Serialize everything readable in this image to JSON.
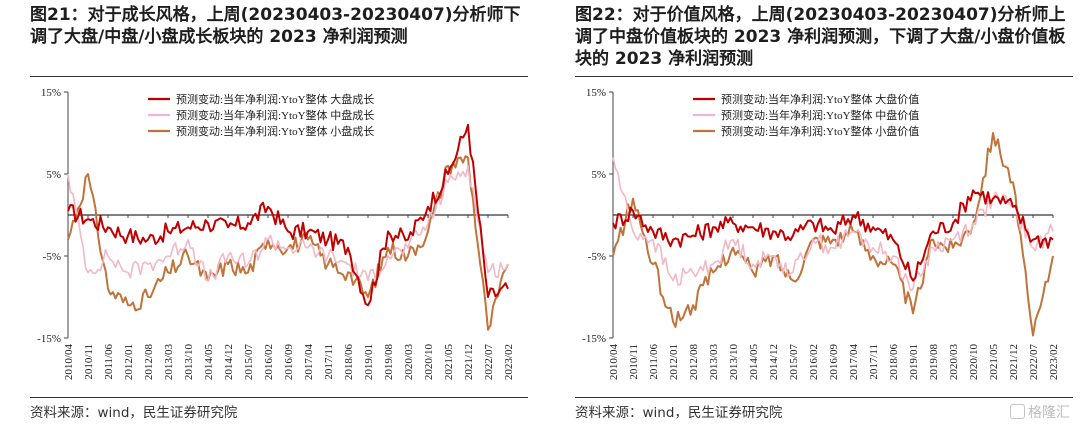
{
  "panels": [
    {
      "title": "图21：对于成长风格，上周(20230403-20230407)分析师下调了大盘/中盘/小盘成长板块的 2023 净利润预测",
      "source": "资料来源：wind，民生证券研究院"
    },
    {
      "title": "图22：对于价值风格，上周(20230403-20230407)分析师上调了中盘价值板块的 2023 净利润预测，下调了大盘/小盘价值板块的 2023 净利润预测",
      "source": "资料来源：wind，民生证券研究院"
    }
  ],
  "watermark": "格隆汇",
  "colors": {
    "large": "#c00000",
    "mid": "#f2b8c6",
    "small": "#c0733a",
    "zero": "#000000"
  },
  "chart_data": [
    {
      "type": "line",
      "title": "",
      "xlabel": "",
      "ylabel": "",
      "x": [
        "2010/04",
        "2010/11",
        "2011/06",
        "2012/01",
        "2012/08",
        "2013/03",
        "2013/10",
        "2014/05",
        "2014/12",
        "2015/07",
        "2016/02",
        "2016/09",
        "2017/04",
        "2017/11",
        "2018/06",
        "2019/01",
        "2019/08",
        "2020/03",
        "2020/10",
        "2021/05",
        "2021/12",
        "2022/07",
        "2023/02"
      ],
      "yticks": [
        "15%",
        "5%",
        "-5%",
        "-15%"
      ],
      "ylim": [
        -15,
        15
      ],
      "legend": "top-center",
      "grid": false,
      "series": [
        {
          "name": "预测变动:当年净利润:YtoY整体 大盘成长",
          "values": [
            0.5,
            -0.5,
            -1.5,
            -2.5,
            -3,
            -2,
            -1.5,
            -1,
            -1.5,
            -1,
            1,
            -2,
            -2,
            -3,
            -4,
            -11,
            -2,
            -3,
            1,
            5,
            11,
            -10,
            -9
          ]
        },
        {
          "name": "预测变动:当年净利润:YtoY整体 中盘成长",
          "values": [
            5,
            -7,
            -5,
            -7,
            -6,
            -5,
            -3,
            -8,
            -5,
            -6,
            -3,
            -4,
            -4,
            -5,
            -6,
            -8,
            -5,
            -4,
            -1,
            4,
            6,
            -7,
            -6
          ]
        },
        {
          "name": "预测变动:当年净利润:YtoY整体 小盘成长",
          "values": [
            -3,
            5,
            -9,
            -11,
            -10,
            -7,
            -5,
            -8,
            -6,
            -7,
            -3,
            -4,
            -3,
            -6,
            -7,
            -10,
            -4,
            -5,
            -2,
            6,
            7,
            -14,
            -6
          ]
        }
      ]
    },
    {
      "type": "line",
      "title": "",
      "xlabel": "",
      "ylabel": "",
      "x": [
        "2010/04",
        "2010/11",
        "2011/06",
        "2012/01",
        "2012/08",
        "2013/03",
        "2013/10",
        "2014/05",
        "2014/12",
        "2015/07",
        "2016/02",
        "2016/09",
        "2017/04",
        "2017/11",
        "2018/06",
        "2019/01",
        "2019/08",
        "2020/03",
        "2020/10",
        "2021/05",
        "2021/12",
        "2022/07",
        "2023/02"
      ],
      "yticks": [
        "15%",
        "5%",
        "-5%",
        "-15%"
      ],
      "ylim": [
        -15,
        15
      ],
      "legend": "top-center",
      "grid": false,
      "series": [
        {
          "name": "预测变动:当年净利润:YtoY整体 大盘价值",
          "values": [
            -1,
            0.5,
            -2,
            -3,
            -2.5,
            -1.5,
            -1,
            -1.5,
            -2,
            -2.5,
            -1,
            -2,
            0,
            -1.5,
            -3,
            -8,
            -2,
            -1,
            3,
            2,
            1,
            -3,
            -3
          ]
        },
        {
          "name": "预测变动:当年净利润:YtoY整体 中盘价值",
          "values": [
            7,
            -2,
            -3,
            -8,
            -7,
            -6,
            -3,
            -6,
            -5,
            -7,
            -3,
            -4,
            -2,
            -4,
            -5,
            -9,
            -4,
            -3,
            -1,
            2,
            1,
            -4,
            -2
          ]
        },
        {
          "name": "预测变动:当年净利润:YtoY整体 小盘价值",
          "values": [
            -5,
            2,
            -6,
            -13,
            -11,
            -7,
            -4,
            -7,
            -5,
            -8,
            -3,
            -3,
            -2,
            -5,
            -6,
            -12,
            -3,
            -4,
            -1,
            10,
            4,
            -15,
            -5
          ]
        }
      ]
    }
  ]
}
